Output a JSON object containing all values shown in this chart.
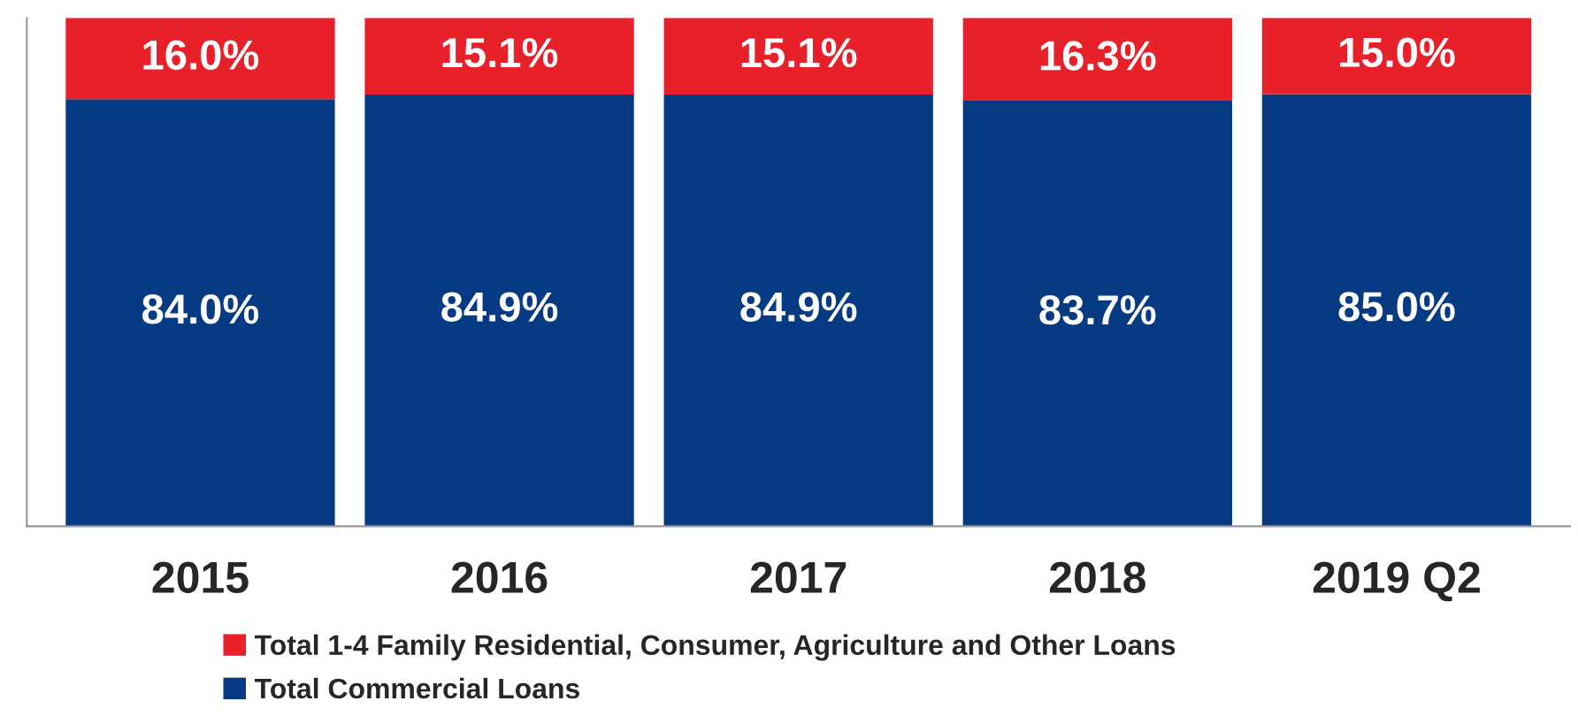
{
  "chart_data": {
    "type": "bar",
    "stacked": true,
    "categories": [
      "2015",
      "2016",
      "2017",
      "2018",
      "2019 Q2"
    ],
    "series": [
      {
        "name": "Total Commercial Loans",
        "color": "#063a82",
        "values": [
          84.0,
          84.9,
          84.9,
          83.7,
          85.0
        ],
        "value_labels": [
          "84.0%",
          "84.9%",
          "84.9%",
          "83.7%",
          "85.0%"
        ]
      },
      {
        "name": "Total 1-4 Family Residential, Consumer, Agriculture and Other Loans",
        "color": "#e8202a",
        "values": [
          16.0,
          15.1,
          15.1,
          16.3,
          15.0
        ],
        "value_labels": [
          "16.0%",
          "15.1%",
          "15.1%",
          "16.3%",
          "15.0%"
        ]
      }
    ],
    "legend": "bottom",
    "tick_labels": "x",
    "grid": false
  }
}
